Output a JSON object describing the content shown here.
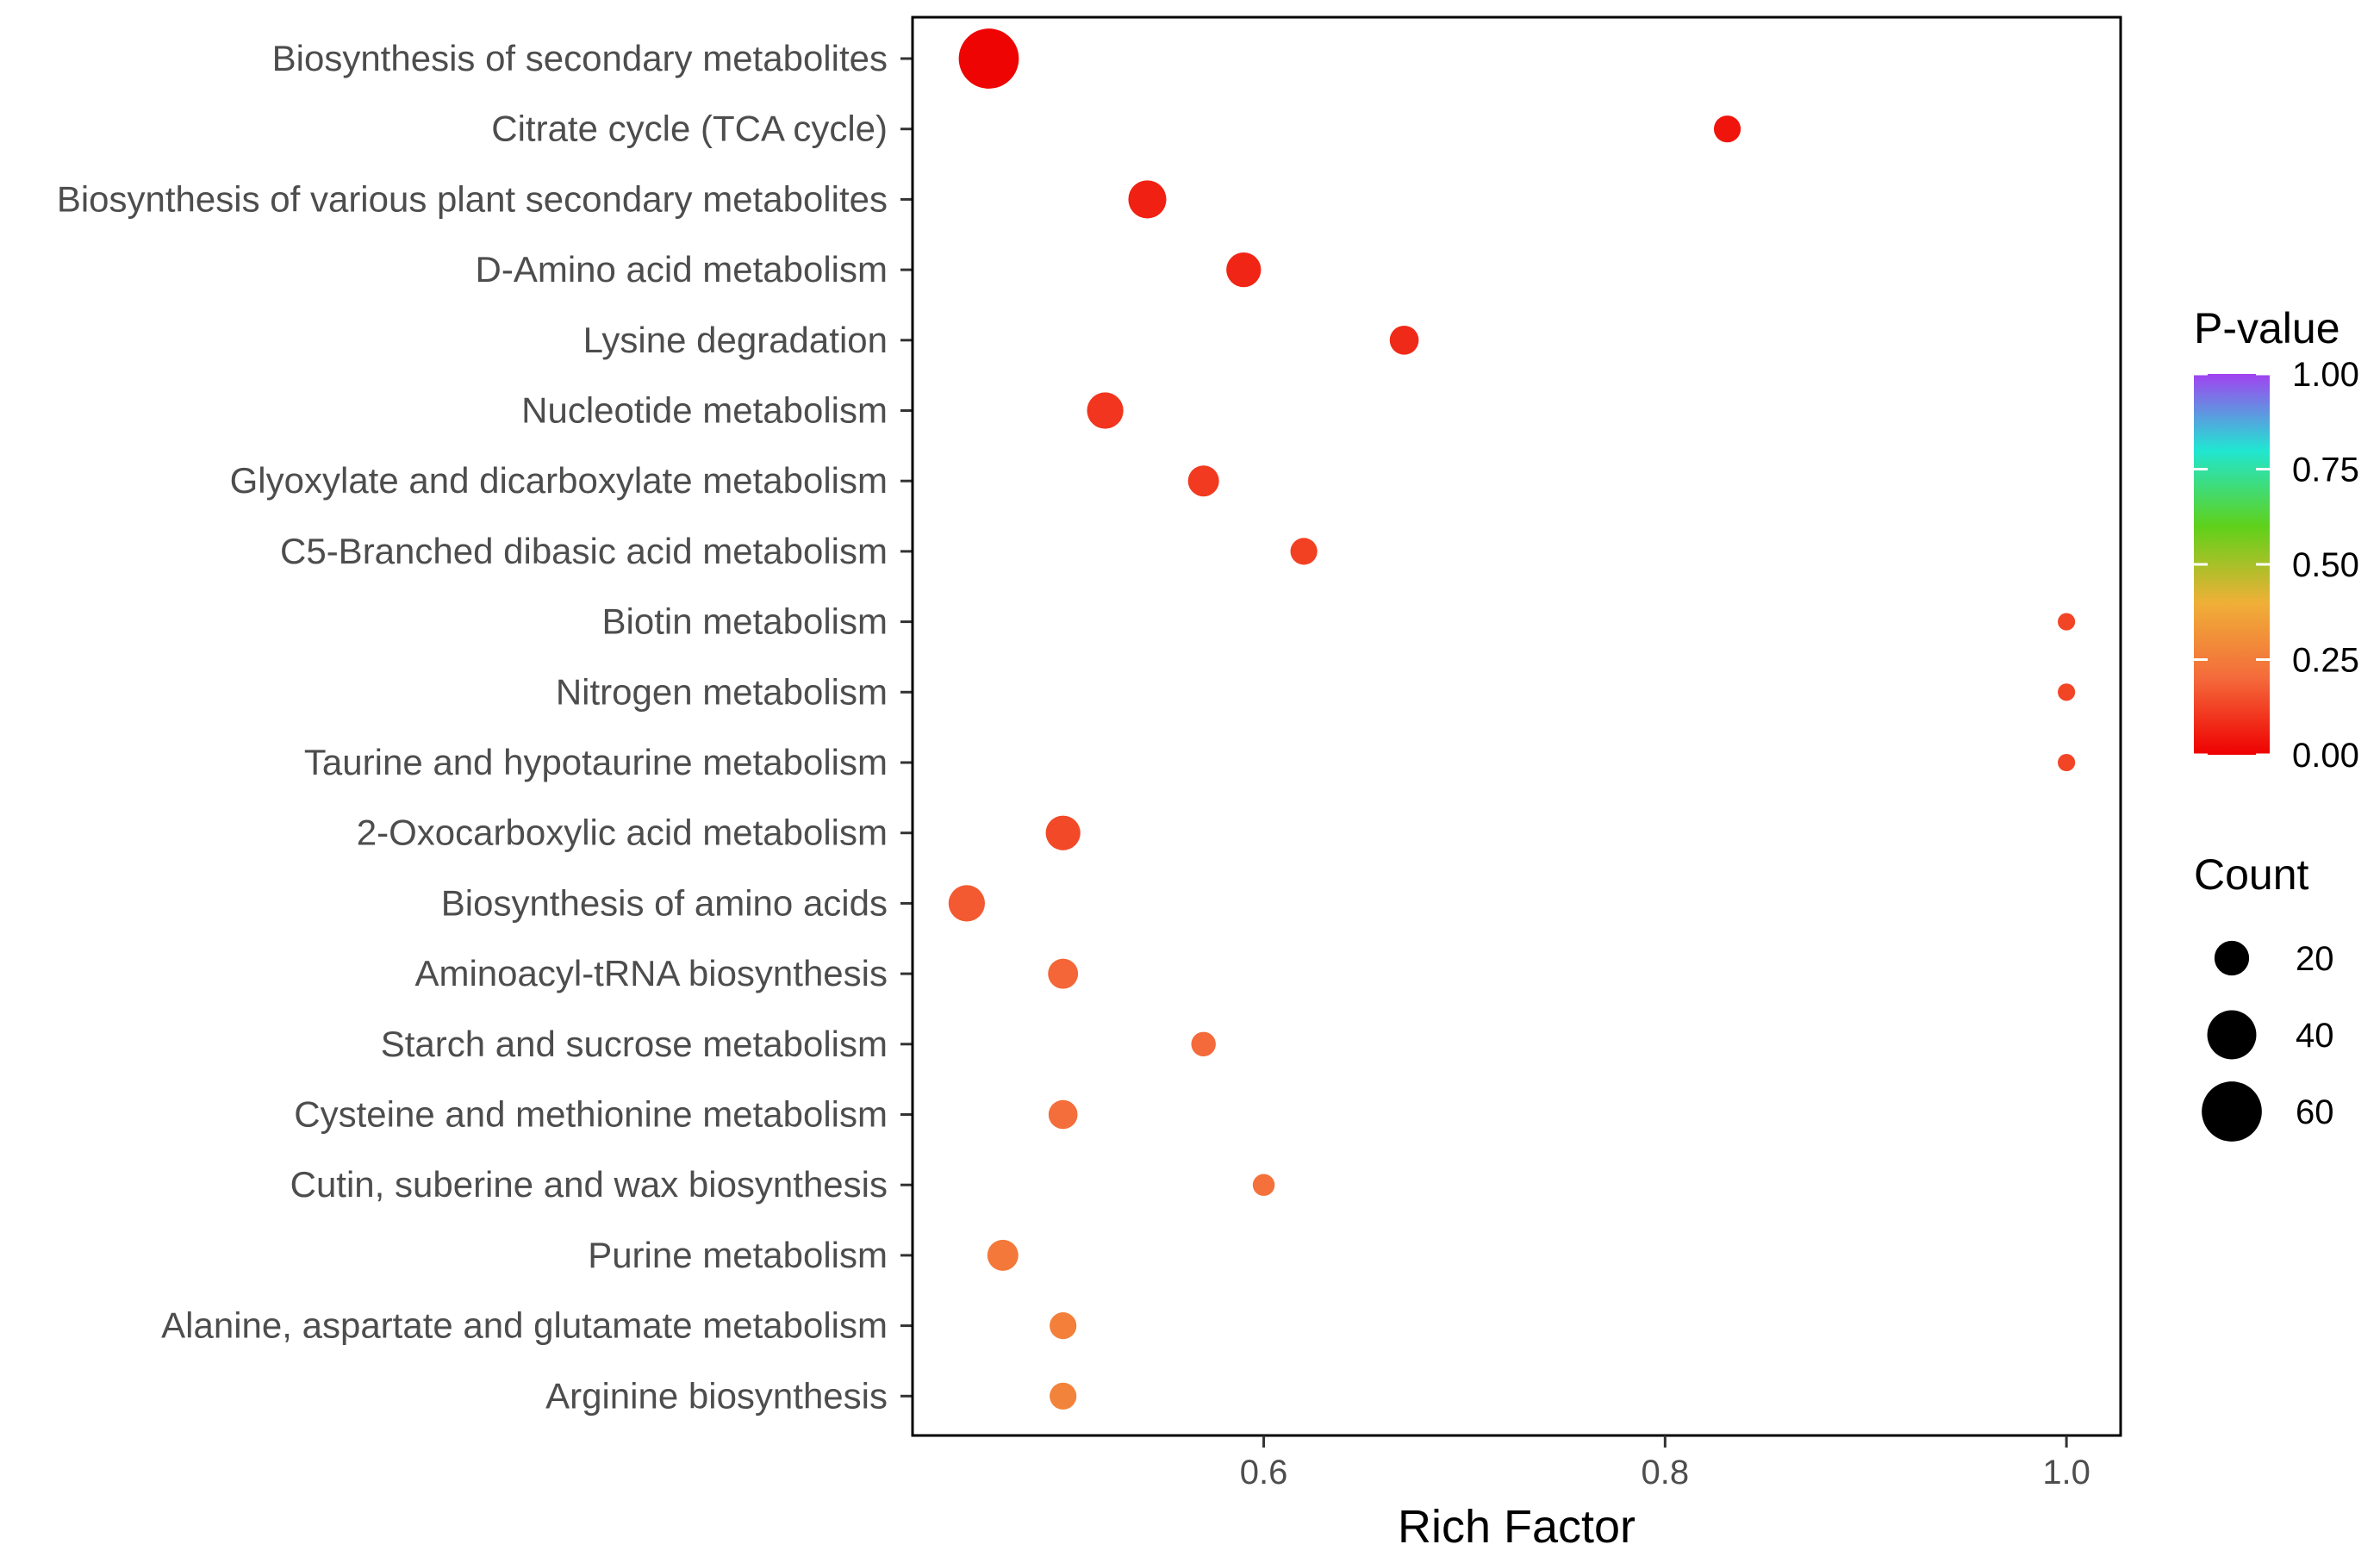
{
  "chart_data": {
    "type": "scatter",
    "title": "",
    "xlabel": "Rich Factor",
    "ylabel": "",
    "xlim": [
      0.425,
      1.027
    ],
    "xticks": [
      0.6,
      0.8,
      1.0
    ],
    "xtick_labels": [
      "0.6",
      "0.8",
      "1.0"
    ],
    "grid": false,
    "categories": [
      "Biosynthesis of secondary metabolites",
      "Citrate cycle (TCA cycle)",
      "Biosynthesis of various plant secondary metabolites",
      "D-Amino acid metabolism",
      "Lysine degradation",
      "Nucleotide metabolism",
      "Glyoxylate and dicarboxylate metabolism",
      "C5-Branched dibasic acid metabolism",
      "Biotin metabolism",
      "Nitrogen metabolism",
      "Taurine and hypotaurine metabolism",
      "2-Oxocarboxylic acid metabolism",
      "Biosynthesis of amino acids",
      "Aminoacyl-tRNA biosynthesis",
      "Starch and sucrose metabolism",
      "Cysteine and methionine metabolism",
      "Cutin, suberine and wax biosynthesis",
      "Purine metabolism",
      "Alanine, aspartate and glutamate metabolism",
      "Arginine biosynthesis"
    ],
    "rich_factor": [
      0.463,
      0.831,
      0.542,
      0.59,
      0.67,
      0.521,
      0.57,
      0.62,
      1.0,
      1.0,
      1.0,
      0.5,
      0.452,
      0.5,
      0.57,
      0.5,
      0.6,
      0.47,
      0.5,
      0.5
    ],
    "p_value": [
      0.01,
      0.04,
      0.06,
      0.07,
      0.08,
      0.1,
      0.11,
      0.12,
      0.13,
      0.13,
      0.13,
      0.14,
      0.17,
      0.19,
      0.2,
      0.21,
      0.22,
      0.24,
      0.26,
      0.27
    ],
    "count": [
      60,
      12,
      24,
      20,
      14,
      22,
      16,
      12,
      5,
      5,
      5,
      20,
      22,
      15,
      10,
      14,
      8,
      16,
      12,
      12
    ],
    "color_legend": {
      "title": "P-value",
      "ticks": [
        "1.00",
        "0.75",
        "0.50",
        "0.25",
        "0.00"
      ],
      "range": [
        0,
        1
      ],
      "colors": [
        "#ee0000",
        "#f46a3b",
        "#efb037",
        "#5fd11a",
        "#21e6d2",
        "#a142f0"
      ]
    },
    "size_legend": {
      "title": "Count",
      "values": [
        20,
        40,
        60
      ],
      "labels": [
        "20",
        "40",
        "60"
      ]
    }
  }
}
